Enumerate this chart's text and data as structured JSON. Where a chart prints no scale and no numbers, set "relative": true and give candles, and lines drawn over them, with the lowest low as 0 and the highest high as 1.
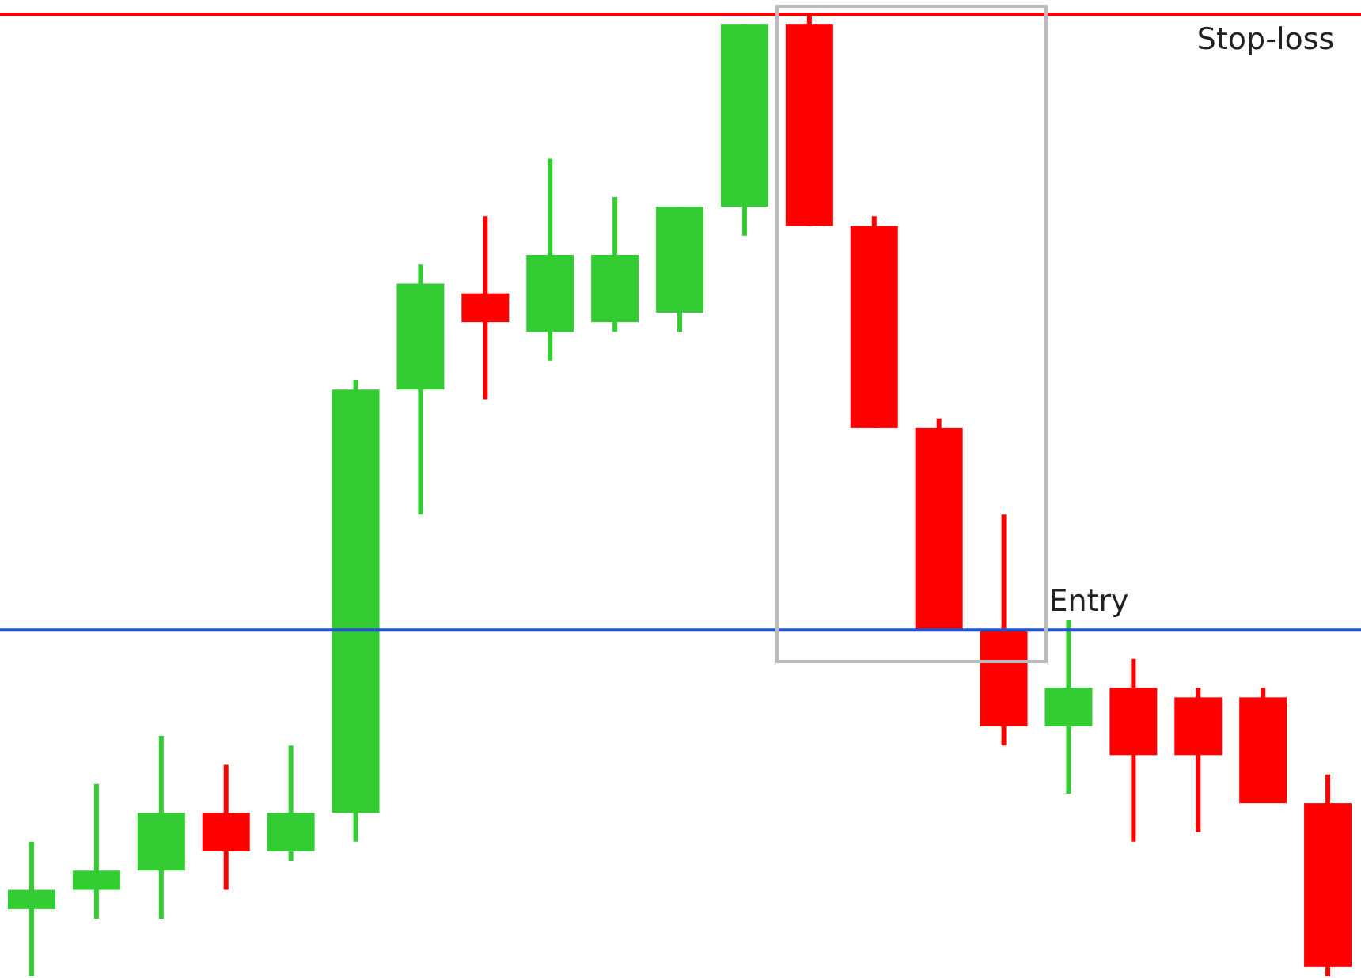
{
  "chart_data": {
    "type": "candlestick",
    "relative": true,
    "tick_labels": false,
    "categories": [
      null,
      null,
      null,
      null,
      null,
      null,
      null,
      null,
      null,
      null,
      null,
      null,
      null,
      null,
      null,
      null,
      null,
      null,
      null,
      null,
      null
    ],
    "ohlc": [
      [
        0.07,
        0.14,
        0,
        0.09
      ],
      [
        0.09,
        0.2,
        0.06,
        0.11
      ],
      [
        0.11,
        0.25,
        0.06,
        0.17
      ],
      [
        0.17,
        0.22,
        0.09,
        0.13
      ],
      [
        0.13,
        0.24,
        0.12,
        0.17
      ],
      [
        0.17,
        0.62,
        0.14,
        0.61
      ],
      [
        0.61,
        0.74,
        0.48,
        0.72
      ],
      [
        0.71,
        0.79,
        0.6,
        0.68
      ],
      [
        0.67,
        0.85,
        0.64,
        0.75
      ],
      [
        0.68,
        0.81,
        0.67,
        0.75
      ],
      [
        0.69,
        0.8,
        0.67,
        0.8
      ],
      [
        0.8,
        0.99,
        0.77,
        0.99
      ],
      [
        0.99,
        1,
        0.78,
        0.78
      ],
      [
        0.78,
        0.79,
        0.57,
        0.57
      ],
      [
        0.57,
        0.58,
        0.36,
        0.36
      ],
      [
        0.36,
        0.48,
        0.24,
        0.26
      ],
      [
        0.26,
        0.37,
        0.19,
        0.3
      ],
      [
        0.3,
        0.33,
        0.14,
        0.23
      ],
      [
        0.29,
        0.3,
        0.15,
        0.23
      ],
      [
        0.29,
        0.3,
        0.18,
        0.18
      ],
      [
        0.18,
        0.21,
        0,
        0.01
      ]
    ],
    "colors": [
      "#33cc33",
      "#33cc33",
      "#33cc33",
      "#ff0000",
      "#33cc33",
      "#33cc33",
      "#33cc33",
      "#ff0000",
      "#33cc33",
      "#33cc33",
      "#33cc33",
      "#33cc33",
      "#ff0000",
      "#ff0000",
      "#ff0000",
      "#ff0000",
      "#33cc33",
      "#ff0000",
      "#ff0000",
      "#ff0000",
      "#ff0000"
    ],
    "ref_lines": [
      {
        "axis": "y",
        "value": 1,
        "label": "Stop-loss",
        "color": "#ff0000"
      },
      {
        "axis": "y",
        "value": 0.36,
        "label": "Entry",
        "color": "#2255cc"
      }
    ]
  }
}
